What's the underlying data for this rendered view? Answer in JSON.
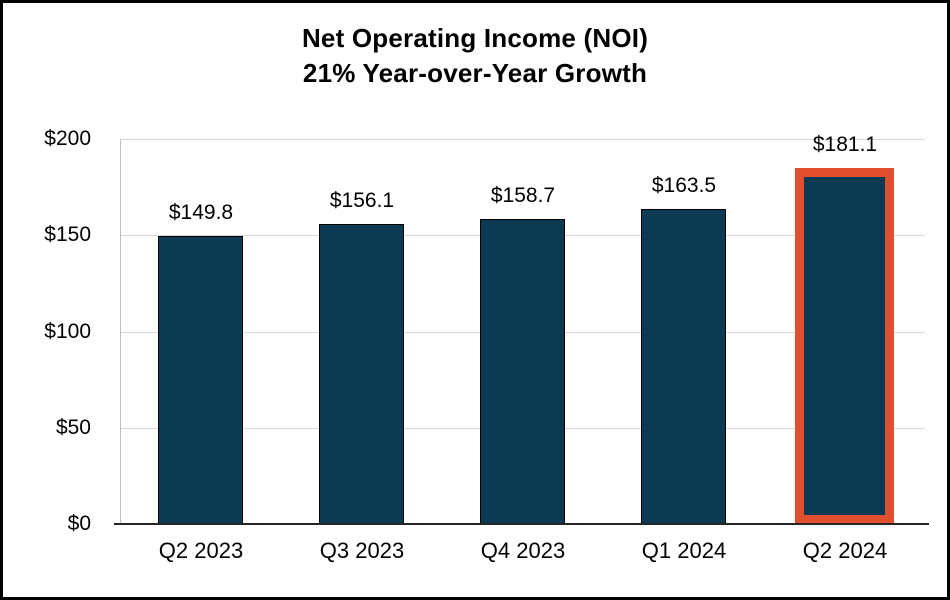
{
  "chart_data": {
    "type": "bar",
    "title": "Net Operating Income (NOI)",
    "subtitle": "21% Year-over-Year Growth",
    "categories": [
      "Q2 2023",
      "Q3 2023",
      "Q4 2023",
      "Q1 2024",
      "Q2 2024"
    ],
    "values": [
      149.8,
      156.1,
      158.7,
      163.5,
      181.1
    ],
    "data_labels": [
      "$149.8",
      "$156.1",
      "$158.7",
      "$163.5",
      "$181.1"
    ],
    "highlighted_index": 4,
    "highlight_meaning": "most recent quarter",
    "ylim": [
      0,
      200
    ],
    "yticks": [
      {
        "value": 0,
        "label": "$0"
      },
      {
        "value": 50,
        "label": "$50"
      },
      {
        "value": 100,
        "label": "$100"
      },
      {
        "value": 150,
        "label": "$150"
      },
      {
        "value": 200,
        "label": "$200"
      }
    ],
    "grid": true,
    "legend": "none",
    "colors": {
      "bar_fill": "#0d3a53",
      "bar_outline": "#000000",
      "highlight_outline": "#e0502f",
      "gridline": "#d9d9d9",
      "y_axis_line": "#bfbfbf",
      "baseline": "#262626",
      "text": "#000000"
    }
  }
}
